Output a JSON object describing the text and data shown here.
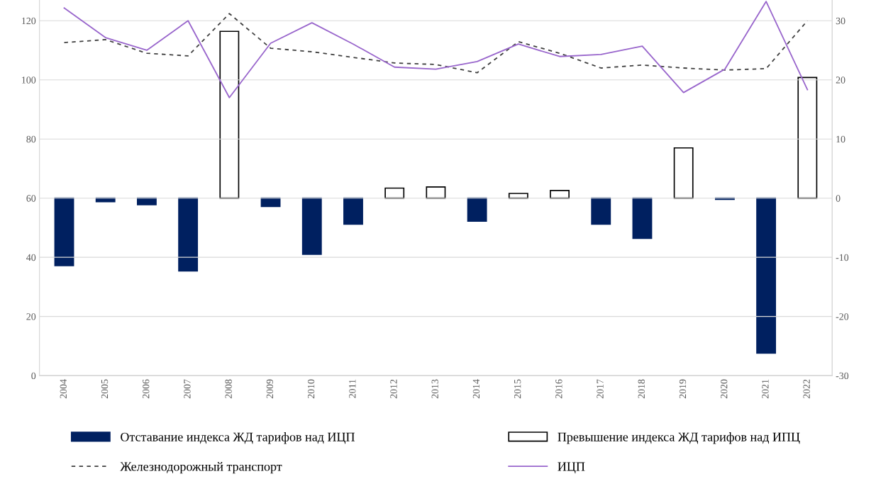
{
  "chart_data": {
    "type": "bar",
    "categories": [
      "2004",
      "2005",
      "2006",
      "2007",
      "2008",
      "2009",
      "2010",
      "2011",
      "2012",
      "2013",
      "2014",
      "2015",
      "2016",
      "2017",
      "2018",
      "2019",
      "2020",
      "2021",
      "2022"
    ],
    "series": [
      {
        "name": "Отставание индекса ЖД тарифов над ИЦП",
        "axis": "y2",
        "color": "#002060",
        "values": [
          -11.4,
          -0.6,
          -1.1,
          -12.3,
          null,
          -1.4,
          -9.5,
          -4.4,
          null,
          null,
          -3.9,
          null,
          null,
          -4.4,
          -6.8,
          null,
          -0.2,
          -26.2,
          null
        ]
      },
      {
        "name": "Превышение индекса ЖД тарифов над ИПЦ",
        "axis": "y2",
        "color": "#ffffff",
        "values": [
          null,
          null,
          null,
          null,
          28.2,
          null,
          null,
          null,
          1.7,
          1.9,
          null,
          0.8,
          1.3,
          null,
          null,
          8.5,
          null,
          null,
          20.4
        ]
      },
      {
        "name": "Железнодорожный транспорт",
        "type": "line",
        "line_style": "dashed",
        "color": "#404040",
        "values": [
          112.6,
          113.6,
          109.0,
          108.1,
          122.4,
          110.7,
          109.5,
          107.6,
          105.7,
          105.2,
          102.4,
          112.9,
          109.0,
          104.0,
          105.0,
          104.0,
          103.3,
          103.8,
          120.0
        ]
      },
      {
        "name": "ИЦП",
        "type": "line",
        "line_style": "solid",
        "color": "#9966cc",
        "values": [
          124.3,
          114.3,
          110.0,
          120.0,
          94.0,
          112.4,
          119.3,
          112.1,
          104.3,
          103.6,
          106.2,
          112.1,
          107.9,
          108.6,
          111.4,
          95.7,
          103.6,
          126.5,
          96.7
        ]
      }
    ],
    "ylim": [
      0,
      127
    ],
    "yticks": [
      0,
      20,
      40,
      60,
      80,
      100,
      120
    ],
    "y2lim": [
      -30,
      33.5
    ],
    "y2ticks": [
      -30,
      -20,
      -10,
      0,
      10,
      20,
      30
    ],
    "grid": "y",
    "legend": "bottom"
  }
}
